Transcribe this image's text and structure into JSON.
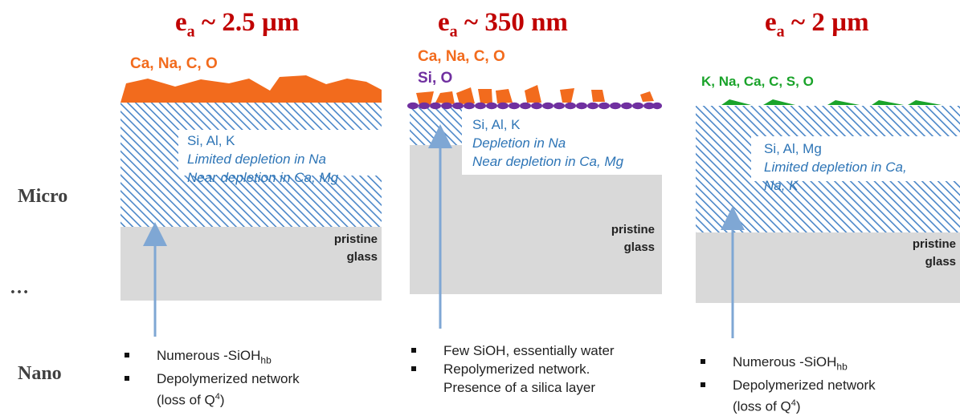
{
  "side_labels": {
    "micro": "Micro",
    "dots": "…",
    "nano": "Nano"
  },
  "panels": [
    {
      "title_prefix": "e",
      "title_sub": "a",
      "title_value": "~ 2.5 µm",
      "deposit_elements": "Ca, Na, C, O",
      "deposit_color": "#f26b1d",
      "layer_lines": [
        "Si, Al, K",
        "Limited depletion in Na",
        "Near depletion in Ca, Mg"
      ],
      "pristine_lines": [
        "pristine",
        "glass"
      ],
      "bullets": [
        "Numerous -SiOH",
        "Depolymerized network",
        "(loss of Q"
      ],
      "bullet1_sub": "hb",
      "bullet3_sup": "4",
      "bullet3_end": ")"
    },
    {
      "title_prefix": "e",
      "title_sub": "a",
      "title_value": "~ 350 nm",
      "deposit_elements": "Ca, Na, C, O",
      "silica_elements": "Si, O",
      "deposit_color": "#f26b1d",
      "silica_color": "#7030a0",
      "layer_lines": [
        "Si, Al, K",
        "Depletion in Na",
        "Near depletion in Ca, Mg"
      ],
      "pristine_lines": [
        "pristine",
        "glass"
      ],
      "bullets": [
        "Few SiOH, essentially water",
        "Repolymerized network.",
        "Presence of a silica layer"
      ]
    },
    {
      "title_prefix": "e",
      "title_sub": "a",
      "title_value": "~ 2 µm",
      "deposit_elements": "K, Na, Ca, C, S, O",
      "deposit_color": "#1aa32a",
      "layer_lines": [
        "Si, Al, Mg",
        "Limited depletion in Ca,",
        "Na, K"
      ],
      "pristine_lines": [
        "pristine",
        "glass"
      ],
      "bullets": [
        "Numerous -SiOH",
        "Depolymerized network",
        "(loss of Q"
      ],
      "bullet1_sub": "hb",
      "bullet3_sup": "4",
      "bullet3_end": ")"
    }
  ],
  "colors": {
    "title": "#c00000",
    "hatch": "#4a86c8",
    "glass": "#d9d9d9",
    "arrow": "#7fa7d4",
    "layer_text": "#2e75b6"
  }
}
